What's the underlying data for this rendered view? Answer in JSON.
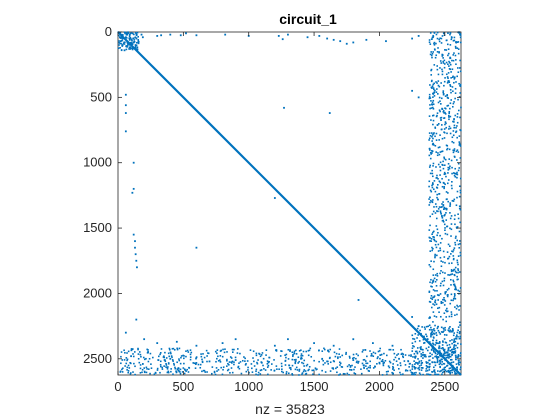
{
  "chart_data": {
    "type": "scatter",
    "subtype": "sparsity-pattern",
    "title": "circuit_1",
    "xlabel": "nz = 35823",
    "ylabel": "",
    "xlim": [
      0,
      2624
    ],
    "ylim": [
      2624,
      0
    ],
    "xticks": [
      0,
      500,
      1000,
      1500,
      2000,
      2500
    ],
    "yticks": [
      0,
      500,
      1000,
      1500,
      2000,
      2500
    ],
    "grid": false,
    "marker_color": "#0072BD",
    "nz": 35823,
    "series": [
      {
        "values_description": "diagonal",
        "x": [
          0,
          2624
        ],
        "y": [
          0,
          2624
        ]
      }
    ],
    "points": [
      [
        30,
        30
      ],
      [
        60,
        40
      ],
      [
        90,
        60
      ],
      [
        120,
        80
      ],
      [
        20,
        70
      ],
      [
        70,
        20
      ],
      [
        140,
        50
      ],
      [
        50,
        140
      ],
      [
        180,
        20
      ],
      [
        190,
        40
      ],
      [
        300,
        30
      ],
      [
        330,
        25
      ],
      [
        400,
        20
      ],
      [
        480,
        25
      ],
      [
        520,
        10
      ],
      [
        600,
        25
      ],
      [
        820,
        20
      ],
      [
        1000,
        30
      ],
      [
        1230,
        30
      ],
      [
        1260,
        55
      ],
      [
        1300,
        20
      ],
      [
        1450,
        40
      ],
      [
        1540,
        30
      ],
      [
        1600,
        50
      ],
      [
        1650,
        60
      ],
      [
        1700,
        70
      ],
      [
        1750,
        90
      ],
      [
        1800,
        80
      ],
      [
        1900,
        60
      ],
      [
        2050,
        70
      ],
      [
        2250,
        50
      ],
      [
        2300,
        30
      ],
      [
        1270,
        580
      ],
      [
        1620,
        620
      ],
      [
        1200,
        1270
      ],
      [
        600,
        1650
      ],
      [
        1840,
        2050
      ],
      [
        60,
        480
      ],
      [
        60,
        560
      ],
      [
        60,
        620
      ],
      [
        60,
        760
      ],
      [
        120,
        1000
      ],
      [
        120,
        1200
      ],
      [
        110,
        1230
      ],
      [
        120,
        1550
      ],
      [
        130,
        1600
      ],
      [
        130,
        1650
      ],
      [
        135,
        1700
      ],
      [
        140,
        1750
      ],
      [
        145,
        1800
      ],
      [
        140,
        2200
      ],
      [
        2250,
        450
      ],
      [
        2300,
        500
      ],
      [
        2250,
        2180
      ],
      [
        2300,
        2250
      ],
      [
        2400,
        2300
      ],
      [
        60,
        2300
      ],
      [
        200,
        2350
      ],
      [
        300,
        2380
      ],
      [
        450,
        2370
      ],
      [
        600,
        2400
      ],
      [
        800,
        2380
      ],
      [
        900,
        2350
      ],
      [
        1200,
        2400
      ],
      [
        1300,
        2350
      ],
      [
        1500,
        2380
      ],
      [
        1650,
        2400
      ],
      [
        1800,
        2350
      ],
      [
        1950,
        2380
      ],
      [
        2100,
        2400
      ],
      [
        100,
        2480
      ],
      [
        400,
        2500
      ],
      [
        700,
        2520
      ],
      [
        900,
        2510
      ],
      [
        1100,
        2530
      ],
      [
        1400,
        2500
      ],
      [
        1600,
        2520
      ],
      [
        1800,
        2510
      ],
      [
        2000,
        2530
      ],
      [
        2150,
        2500
      ]
    ]
  }
}
